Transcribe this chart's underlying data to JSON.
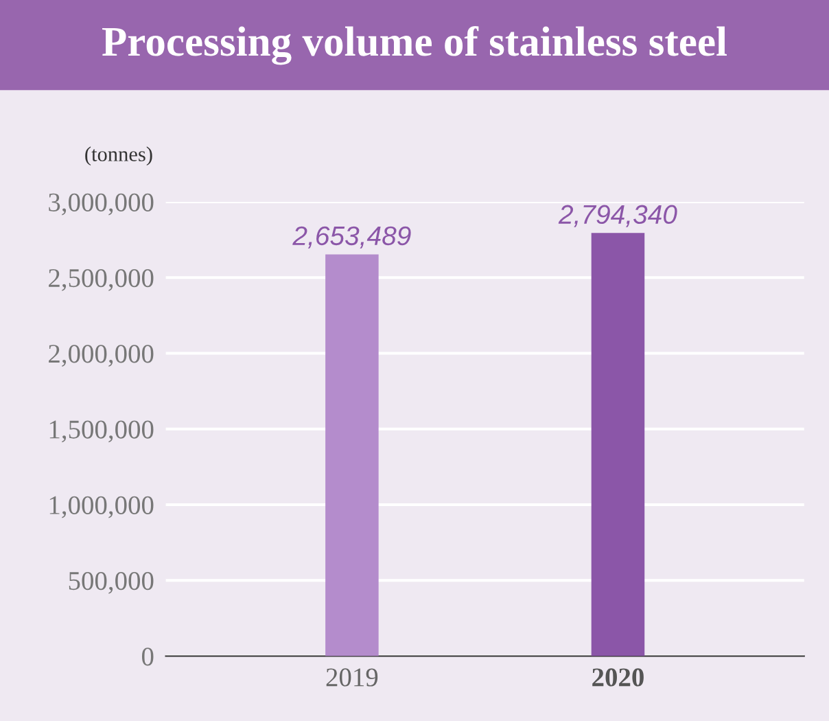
{
  "chart_data": {
    "type": "bar",
    "title": "Processing volume of stainless steel",
    "ylabel": "(tonnes)",
    "categories": [
      "2019",
      "2020"
    ],
    "values": [
      2653489,
      2794340
    ],
    "colors": [
      "#b48ccc",
      "#8b56a8"
    ],
    "value_labels": [
      "2,653,489",
      "2,794,340"
    ],
    "ylim": [
      0,
      3000000
    ],
    "yticks": [
      {
        "value": 0,
        "label": "0"
      },
      {
        "value": 500000,
        "label": "500,000"
      },
      {
        "value": 1000000,
        "label": "1,000,000"
      },
      {
        "value": 1500000,
        "label": "1,500,000"
      },
      {
        "value": 2000000,
        "label": "2,000,000"
      },
      {
        "value": 2500000,
        "label": "2,500,000"
      },
      {
        "value": 3000000,
        "label": "3,000,000"
      }
    ],
    "grid": "y"
  }
}
